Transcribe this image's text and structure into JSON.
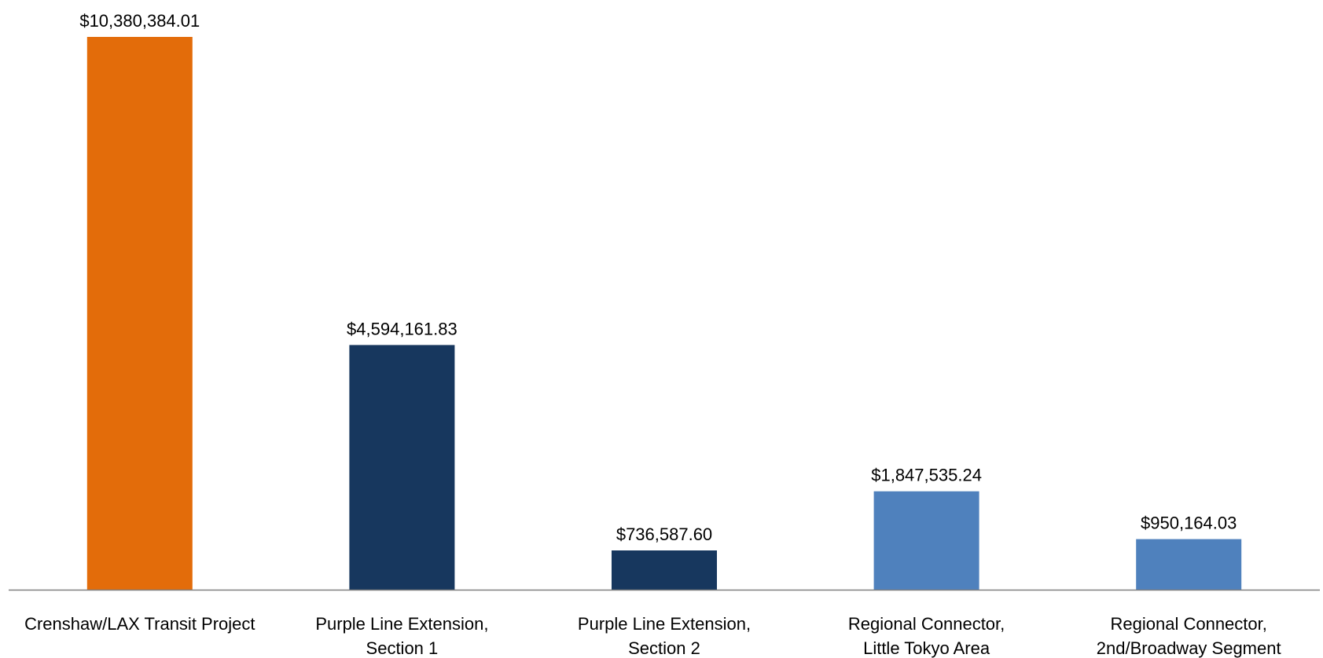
{
  "chart_data": {
    "type": "bar",
    "title": "",
    "xlabel": "",
    "ylabel": "",
    "categories": [
      [
        "Crenshaw/LAX Transit Project"
      ],
      [
        "Purple Line Extension,",
        "Section 1"
      ],
      [
        "Purple Line Extension,",
        "Section 2"
      ],
      [
        "Regional Connector,",
        "Little Tokyo Area"
      ],
      [
        "Regional Connector,",
        "2nd/Broadway Segment"
      ]
    ],
    "values": [
      10380384.01,
      4594161.83,
      736587.6,
      1847535.24,
      950164.03
    ],
    "value_labels": [
      "$10,380,384.01",
      "$4,594,161.83",
      "$736,587.60",
      "$1,847,535.24",
      "$950,164.03"
    ],
    "bar_colors": [
      "#E36C0A",
      "#17375E",
      "#17375E",
      "#4F81BD",
      "#4F81BD"
    ],
    "ylim": [
      0,
      10380384.01
    ],
    "grid": false,
    "legend": "none",
    "axis_color": "#808080"
  }
}
